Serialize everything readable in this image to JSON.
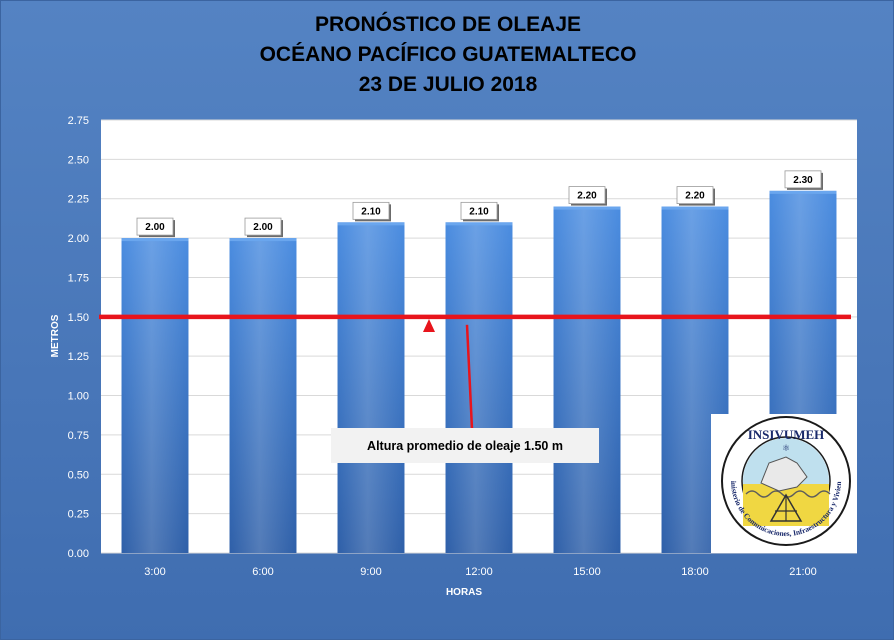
{
  "header": {
    "line1": "PRONÓSTICO DE OLEAJE",
    "line2": "OCÉANO PACÍFICO GUATEMALTECO",
    "line3": "23 DE JULIO 2018"
  },
  "chart_data": {
    "type": "bar",
    "title": "PRONÓSTICO DE OLEAJE OCÉANO PACÍFICO GUATEMALTECO 23 DE JULIO 2018",
    "xlabel": "HORAS",
    "ylabel": "METROS",
    "categories": [
      "3:00",
      "6:00",
      "9:00",
      "12:00",
      "15:00",
      "18:00",
      "21:00"
    ],
    "values": [
      2.0,
      2.0,
      2.1,
      2.1,
      2.2,
      2.2,
      2.3
    ],
    "value_labels": [
      "2.00",
      "2.00",
      "2.10",
      "2.10",
      "2.20",
      "2.20",
      "2.30"
    ],
    "ylim": [
      0,
      2.75
    ],
    "yticks": [
      "0.00",
      "0.25",
      "0.50",
      "0.75",
      "1.00",
      "1.25",
      "1.50",
      "1.75",
      "2.00",
      "2.25",
      "2.50",
      "2.75"
    ],
    "ytick_values": [
      0,
      0.25,
      0.5,
      0.75,
      1.0,
      1.25,
      1.5,
      1.75,
      2.0,
      2.25,
      2.5,
      2.75
    ],
    "reference_line": {
      "value": 1.5,
      "color": "#e8141c"
    },
    "annotation": {
      "text": "Altura promedio de oleaje 1.50 m",
      "category_index": 3
    },
    "grid": true,
    "bar_color": "#3d7ad0",
    "plot_background": "#ffffff"
  },
  "logo": {
    "name": "INSIVUMEH",
    "ring_text": "Ministerio de Comunicaciones, Infraestructura y Vivienda"
  }
}
